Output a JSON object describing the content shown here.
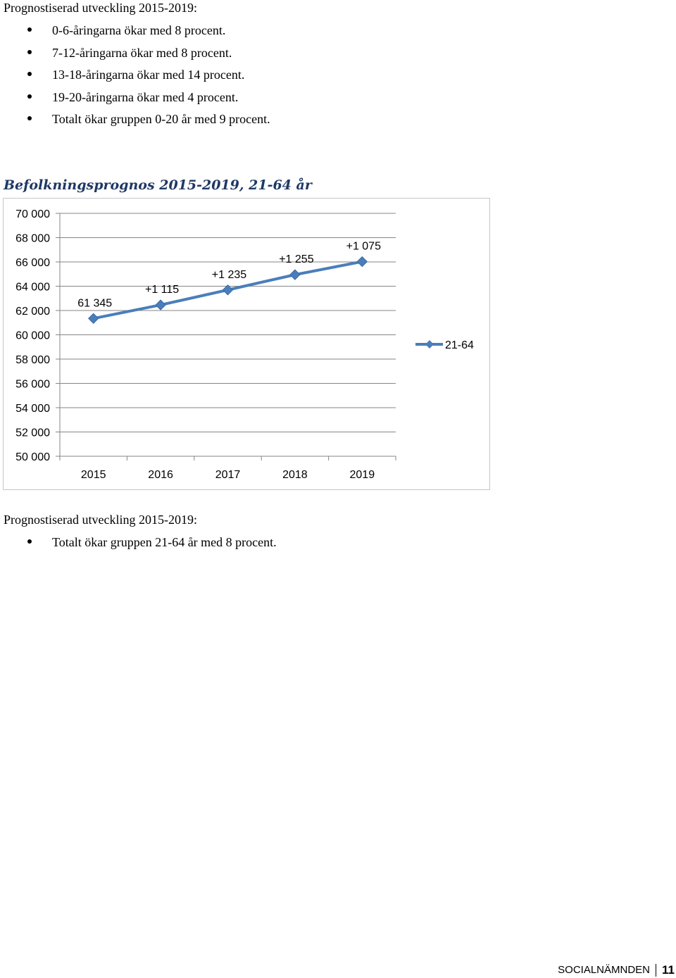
{
  "section1": {
    "heading": "Prognostiserad utveckling 2015-2019:",
    "bullets": [
      "0-6-åringarna ökar med 8 procent.",
      "7-12-åringarna ökar med 8 procent.",
      "13-18-åringarna ökar med 14 procent.",
      "19-20-åringarna ökar med 4 procent.",
      "Totalt ökar gruppen 0-20 år med 9 procent."
    ]
  },
  "chart_title": "Befolkningsprognos 2015-2019, 21-64 år",
  "chart_data": {
    "type": "line",
    "title": "Befolkningsprognos 2015-2019, 21-64 år",
    "categories": [
      "2015",
      "2016",
      "2017",
      "2018",
      "2019"
    ],
    "series": [
      {
        "name": "21-64",
        "values": [
          61345,
          62460,
          63695,
          64950,
          66025
        ],
        "color": "#4a7ebb"
      }
    ],
    "data_labels": [
      "61 345",
      "+1 115",
      "+1 235",
      "+1 255",
      "+1 075"
    ],
    "ylim": [
      50000,
      70000
    ],
    "yticks": [
      70000,
      68000,
      66000,
      64000,
      62000,
      60000,
      58000,
      56000,
      54000,
      52000,
      50000
    ],
    "ytick_labels": [
      "70 000",
      "68 000",
      "66 000",
      "64 000",
      "62 000",
      "60 000",
      "58 000",
      "56 000",
      "54 000",
      "52 000",
      "50 000"
    ],
    "grid": true,
    "legend": "right",
    "gridline_color": "#868686"
  },
  "section2": {
    "heading": "Prognostiserad utveckling 2015-2019:",
    "bullets": [
      "Totalt ökar gruppen 21-64 år med 8 procent."
    ]
  },
  "footer": {
    "label": "SOCIALNÄMNDEN",
    "page": "11"
  }
}
